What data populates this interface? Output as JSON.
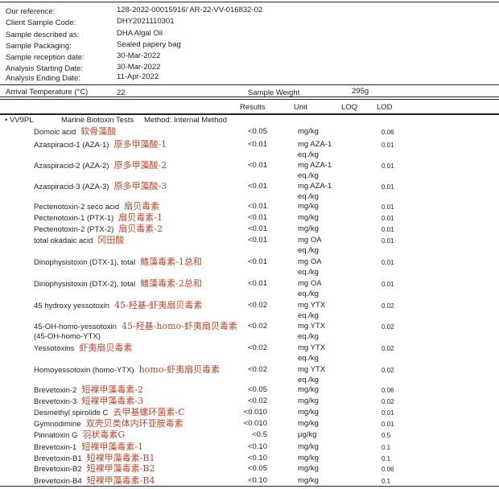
{
  "info": [
    {
      "label": "Our reference:",
      "value": "128-2022-00015916/   AR-22-VV-016832-02"
    },
    {
      "label": "Client Sample Code:",
      "value": "DHY2021110301"
    },
    {
      "label": "Sample described as:",
      "value": "DHA Algal Oil"
    },
    {
      "label": "Sample Packaging:",
      "value": "Sealed papery bag"
    },
    {
      "label": "Sample reception date:",
      "value": "30-Mar-2022"
    },
    {
      "label": "Analysis Starting Date:",
      "value": "30-Mar-2022"
    },
    {
      "label": "Analysis Ending Date:",
      "value": "11-Apr-2022"
    }
  ],
  "arrival": {
    "label": "Arrival Temperature (°C)",
    "value": "22",
    "weight_label": "Sample Weight",
    "weight_value": "295g"
  },
  "columns": {
    "results": "Results",
    "unit": "Unit",
    "loq": "LOQ",
    "lod": "LOD"
  },
  "section": {
    "code": "• VV9PL",
    "name": "Marine Biotoxin Tests",
    "method": "Method: Internal Method"
  },
  "rows": [
    {
      "name": "Domoic acid",
      "cn": "软骨藻酸",
      "result": "<0.05",
      "unit": "mg/kg",
      "unit2": "",
      "lod": "0.06"
    },
    {
      "name": "Azaspiracid-1 (AZA-1)",
      "cn": "原多甲藻酸-1",
      "result": "<0.01",
      "unit": "mg AZA-1",
      "unit2": "eq./kg",
      "lod": "0.01"
    },
    {
      "name": "Azaspiracid-2 (AZA-2)",
      "cn": "原多甲藻酸-2",
      "result": "<0.01",
      "unit": "mg AZA-1",
      "unit2": "eq./kg",
      "lod": "0.01"
    },
    {
      "name": "Azaspiracid-3 (AZA-3)",
      "cn": "原多甲藻酸-3",
      "result": "<0.01",
      "unit": "mg AZA-1",
      "unit2": "eq./kg",
      "lod": "0.01"
    },
    {
      "name": "Pectenotoxin-2 seco acid",
      "cn": "扇贝毒素",
      "result": "<0.01",
      "unit": "mg/kg",
      "unit2": "",
      "lod": "0.01"
    },
    {
      "name": "Pectenotoxin-1 (PTX-1)",
      "cn": "扇贝毒素-1",
      "result": "<0.01",
      "unit": "mg/kg",
      "unit2": "",
      "lod": "0.01"
    },
    {
      "name": "Pectenotoxin-2 (PTX-2)",
      "cn": "扇贝毒素-2",
      "result": "<0.01",
      "unit": "mg/kg",
      "unit2": "",
      "lod": "0.01"
    },
    {
      "name": "total okadaic acid",
      "cn": "冈田酸",
      "result": "<0.01",
      "unit": "mg OA",
      "unit2": "eq./kg",
      "lod": "0.01"
    },
    {
      "name": "Dinophysistoxin (DTX-1), total",
      "cn": "鳍藻毒素-1总和",
      "result": "<0.01",
      "unit": "mg OA",
      "unit2": "eq./kg",
      "lod": "0.01"
    },
    {
      "name": "Dinophysistoxin (DTX-2), total",
      "cn": "鳍藻毒素-2总和",
      "result": "<0.01",
      "unit": "mg OA",
      "unit2": "eq./kg",
      "lod": "0.01"
    },
    {
      "name": "45 hydroxy yessotoxin",
      "cn": "45-羟基-虾夷扇贝毒素",
      "result": "<0.02",
      "unit": "mg YTX",
      "unit2": "eq./kg",
      "lod": "0.02"
    },
    {
      "name": "45-OH-homo-yessotoxin",
      "name2": "(45-OH-homo-YTX)",
      "cn": "45-羟基-homo-虾夷扇贝毒素",
      "result": "<0.02",
      "unit": "mg YTX",
      "unit2": "eq./kg",
      "lod": "0.02"
    },
    {
      "name": "Yessotoxins",
      "cn": "虾夷扇贝毒素",
      "result": "<0.02",
      "unit": "mg YTX",
      "unit2": "eq./kg",
      "lod": "0.02"
    },
    {
      "name": "Homoyessotoxin (homo-YTX)",
      "cn": "homo-虾夷扇贝毒素",
      "result": "<0.02",
      "unit": "mg YTX",
      "unit2": "eq./kg",
      "lod": "0.02"
    },
    {
      "name": "Brevetoxin-2",
      "cn": "短裸甲藻毒素-2",
      "result": "<0.05",
      "unit": "mg/kg",
      "unit2": "",
      "lod": "0.06"
    },
    {
      "name": "Brevetoxin-3",
      "cn": "短裸甲藻毒素-3",
      "result": "<0.02",
      "unit": "mg/kg",
      "unit2": "",
      "lod": "0.02"
    },
    {
      "name": "Desmethyl spirolide C",
      "cn": "去甲基螺环菌素-C",
      "result": "<0.010",
      "unit": "mg/kg",
      "unit2": "",
      "lod": "0.01"
    },
    {
      "name": "Gymnodimine",
      "cn": "双壳贝类体内环亚胺毒素",
      "result": "<0.010",
      "unit": "mg/kg",
      "unit2": "",
      "lod": "0.01"
    },
    {
      "name": "Pinnatoxin G",
      "cn": "羽状毒素G",
      "result": "<0.5",
      "unit": "µg/kg",
      "unit2": "",
      "lod": "0.5"
    },
    {
      "name": "Brevetoxin-1",
      "cn": "短裸甲藻毒素-1",
      "result": "<0.10",
      "unit": "mg/kg",
      "unit2": "",
      "lod": "0.1"
    },
    {
      "name": "Brevetoxin-B1",
      "cn": "短裸甲藻毒素-B1",
      "result": "<0.10",
      "unit": "mg/kg",
      "unit2": "",
      "lod": "0.1"
    },
    {
      "name": "Brevetoxin-B2",
      "cn": "短裸甲藻毒素-B2",
      "result": "<0.05",
      "unit": "mg/kg",
      "unit2": "",
      "lod": "0.06"
    },
    {
      "name": "Brevetoxin-B4",
      "cn": "短裸甲藻毒素-B4",
      "result": "<0.10",
      "unit": "mg/kg",
      "unit2": "",
      "lod": "0.1"
    }
  ]
}
